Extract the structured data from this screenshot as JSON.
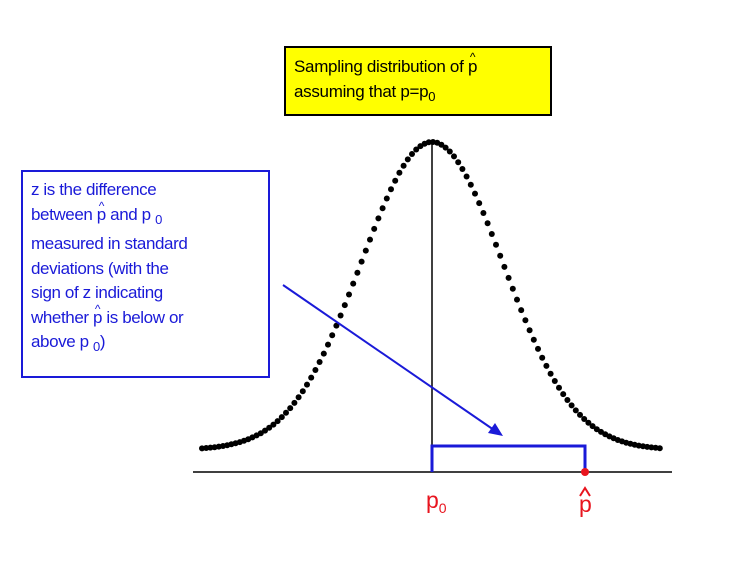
{
  "title": {
    "line1_prefix": "Sampling distribution of ",
    "p_hat_symbol": "p",
    "line2_prefix": "assuming that p=p",
    "zero_subscript": "0"
  },
  "note": {
    "line1": "z is the difference",
    "line2_prefix": "between ",
    "p_hat_symbol": "p",
    "line2_middle": " and p ",
    "zero_subscript": "0",
    "line3": "measured in standard",
    "line4": "deviations (with the",
    "line5": "sign of z indicating",
    "line6_prefix": "whether ",
    "line6_suffix": " is below or",
    "line7_prefix": "above p ",
    "line7_suffix": ")"
  },
  "axis_labels": {
    "p0_main": "p",
    "p0_sub": "0",
    "p_hat": "p"
  },
  "colors": {
    "curve": "#000000",
    "arrow": "#1a1ad8",
    "bracket": "#1a1ad8",
    "marker": "#e8141e",
    "title_fill": "#ffff00"
  }
}
